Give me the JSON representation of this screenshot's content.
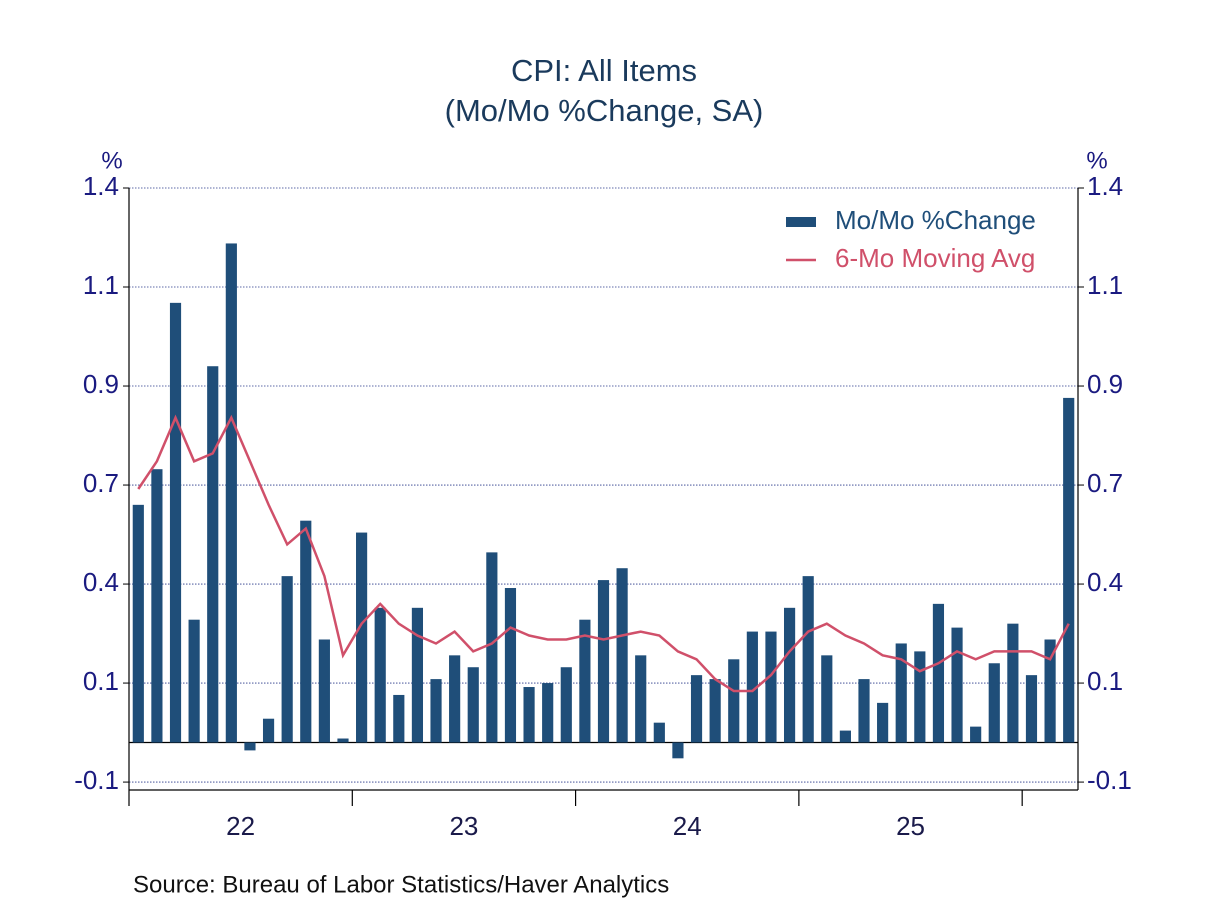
{
  "chart_data": {
    "type": "bar",
    "title": "CPI: All Items",
    "subtitle": "(Mo/Mo %Change, SA)",
    "ylabel": "%",
    "y2label": "%",
    "source": "Source:  Bureau of Labor Statistics/Haver Analytics",
    "categories": [
      "22",
      null,
      null,
      null,
      null,
      null,
      null,
      null,
      null,
      null,
      null,
      null,
      "23",
      null,
      null,
      null,
      null,
      null,
      null,
      null,
      null,
      null,
      null,
      null,
      "24",
      null,
      null,
      null,
      null,
      null,
      null,
      null,
      null,
      null,
      null,
      null,
      "25",
      null,
      null,
      null,
      null,
      null,
      null,
      null,
      null,
      null,
      null,
      null,
      null,
      null,
      null
    ],
    "series": [
      {
        "name": "Mo/Mo %Change",
        "type": "bar",
        "color": "#1f4e79",
        "values": [
          0.6,
          0.69,
          1.11,
          0.31,
          0.95,
          1.26,
          -0.02,
          0.06,
          0.42,
          0.56,
          0.26,
          0.01,
          0.53,
          0.34,
          0.12,
          0.34,
          0.16,
          0.22,
          0.19,
          0.48,
          0.39,
          0.14,
          0.15,
          0.19,
          0.31,
          0.41,
          0.44,
          0.22,
          0.05,
          -0.04,
          0.17,
          0.16,
          0.21,
          0.28,
          0.28,
          0.34,
          0.42,
          0.22,
          0.03,
          0.16,
          0.1,
          0.25,
          0.23,
          0.35,
          0.29,
          0.04,
          0.2,
          0.3,
          0.17,
          0.26,
          0.87
        ]
      },
      {
        "name": "6-Mo Moving Avg",
        "type": "line",
        "color": "#d0506a",
        "values": [
          0.64,
          0.71,
          0.82,
          0.71,
          0.73,
          0.82,
          0.71,
          0.6,
          0.5,
          0.54,
          0.42,
          0.22,
          0.3,
          0.35,
          0.3,
          0.27,
          0.25,
          0.28,
          0.23,
          0.25,
          0.29,
          0.27,
          0.26,
          0.26,
          0.27,
          0.26,
          0.27,
          0.28,
          0.27,
          0.23,
          0.21,
          0.16,
          0.13,
          0.13,
          0.17,
          0.23,
          0.28,
          0.3,
          0.27,
          0.25,
          0.22,
          0.21,
          0.18,
          0.2,
          0.23,
          0.21,
          0.23,
          0.23,
          0.23,
          0.21,
          0.3
        ]
      }
    ],
    "ylim": [
      -0.12,
      1.4
    ],
    "yticks": [
      {
        "value": -0.1,
        "label": "-0.1"
      },
      {
        "value": 0.15,
        "label": "0.1"
      },
      0.4,
      {
        "value": 0.65,
        "label": "0.7"
      },
      0.9,
      {
        "value": 1.15,
        "label": "1.1"
      },
      1.4
    ],
    "grid": true,
    "legend": "upper right"
  }
}
